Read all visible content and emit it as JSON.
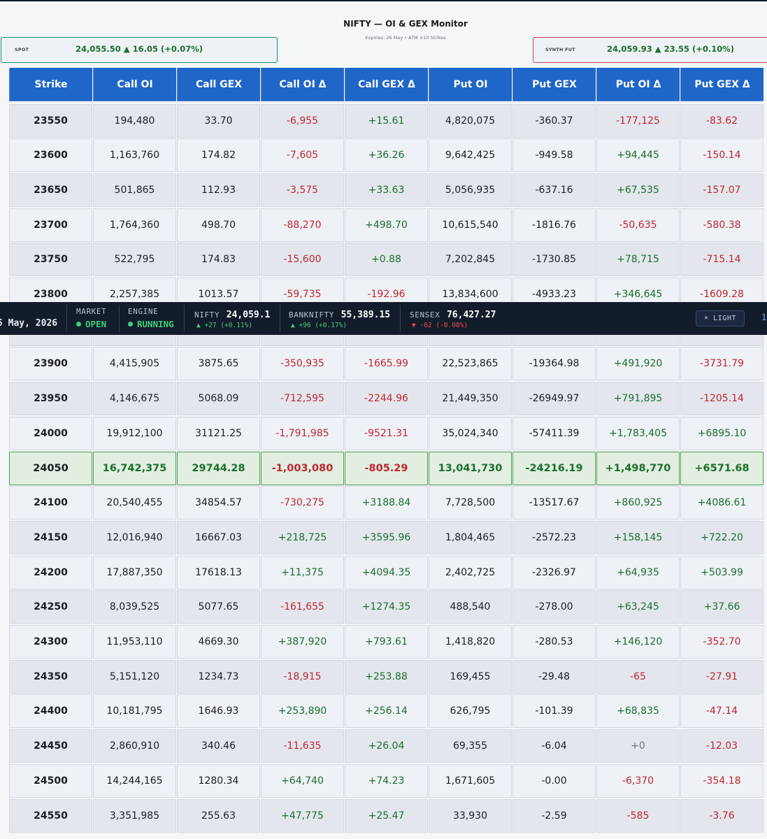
{
  "header": {
    "title": "NIFTY  —  OI & GEX Monitor",
    "subtitle": "Expiries: 26 May  •  ATM ±10 Strikes",
    "spot": {
      "label": "SPOT",
      "value": "24,055.50  ▲ 16.05 (+0.07%)"
    },
    "synth_fut": {
      "label": "SYNTH FUT",
      "value": "24,059.93  ▲ 23.55 (+0.10%)"
    }
  },
  "table": {
    "headers": [
      "Strike",
      "Call OI",
      "Call GEX",
      "Call OI Δ",
      "Call GEX Δ",
      "Put OI",
      "Put GEX",
      "Put OI Δ",
      "Put GEX Δ"
    ],
    "rows": [
      {
        "strike": "23550",
        "call_oi": "194,480",
        "call_gex": "33.70",
        "call_oi_d": "-6,955",
        "call_gex_d": "+15.61",
        "put_oi": "4,820,075",
        "put_gex": "-360.37",
        "put_oi_d": "-177,125",
        "put_gex_d": "-83.62"
      },
      {
        "strike": "23600",
        "call_oi": "1,163,760",
        "call_gex": "174.82",
        "call_oi_d": "-7,605",
        "call_gex_d": "+36.26",
        "put_oi": "9,642,425",
        "put_gex": "-949.58",
        "put_oi_d": "+94,445",
        "put_gex_d": "-150.14"
      },
      {
        "strike": "23650",
        "call_oi": "501,865",
        "call_gex": "112.93",
        "call_oi_d": "-3,575",
        "call_gex_d": "+33.63",
        "put_oi": "5,056,935",
        "put_gex": "-637.16",
        "put_oi_d": "+67,535",
        "put_gex_d": "-157.07"
      },
      {
        "strike": "23700",
        "call_oi": "1,764,360",
        "call_gex": "498.70",
        "call_oi_d": "-88,270",
        "call_gex_d": "+498.70",
        "put_oi": "10,615,540",
        "put_gex": "-1816.76",
        "put_oi_d": "-50,635",
        "put_gex_d": "-580.38"
      },
      {
        "strike": "23750",
        "call_oi": "522,795",
        "call_gex": "174.83",
        "call_oi_d": "-15,600",
        "call_gex_d": "+0.88",
        "put_oi": "7,202,845",
        "put_gex": "-1730.85",
        "put_oi_d": "+78,715",
        "put_gex_d": "-715.14"
      },
      {
        "strike": "23800",
        "call_oi": "2,257,385",
        "call_gex": "1013.57",
        "call_oi_d": "-59,735",
        "call_gex_d": "-192.96",
        "put_oi": "13,834,600",
        "put_gex": "-4933.23",
        "put_oi_d": "+346,645",
        "put_gex_d": "-1609.28"
      },
      {
        "strike": "",
        "call_oi": "",
        "call_gex": "",
        "call_oi_d": "",
        "call_gex_d": "",
        "put_oi": "",
        "put_gex": "",
        "put_oi_d": "",
        "put_gex_d": ""
      },
      {
        "strike": "23900",
        "call_oi": "4,415,905",
        "call_gex": "3875.65",
        "call_oi_d": "-350,935",
        "call_gex_d": "-1665.99",
        "put_oi": "22,523,865",
        "put_gex": "-19364.98",
        "put_oi_d": "+491,920",
        "put_gex_d": "-3731.79"
      },
      {
        "strike": "23950",
        "call_oi": "4,146,675",
        "call_gex": "5068.09",
        "call_oi_d": "-712,595",
        "call_gex_d": "-2244.96",
        "put_oi": "21,449,350",
        "put_gex": "-26949.97",
        "put_oi_d": "+791,895",
        "put_gex_d": "-1205.14"
      },
      {
        "strike": "24000",
        "call_oi": "19,912,100",
        "call_gex": "31121.25",
        "call_oi_d": "-1,791,985",
        "call_gex_d": "-9521.31",
        "put_oi": "35,024,340",
        "put_gex": "-57411.39",
        "put_oi_d": "+1,783,405",
        "put_gex_d": "+6895.10"
      },
      {
        "strike": "24050",
        "call_oi": "16,742,375",
        "call_gex": "29744.28",
        "call_oi_d": "-1,003,080",
        "call_gex_d": "-805.29",
        "put_oi": "13,041,730",
        "put_gex": "-24216.19",
        "put_oi_d": "+1,498,770",
        "put_gex_d": "+6571.68",
        "atm": true
      },
      {
        "strike": "24100",
        "call_oi": "20,540,455",
        "call_gex": "34854.57",
        "call_oi_d": "-730,275",
        "call_gex_d": "+3188.84",
        "put_oi": "7,728,500",
        "put_gex": "-13517.67",
        "put_oi_d": "+860,925",
        "put_gex_d": "+4086.61"
      },
      {
        "strike": "24150",
        "call_oi": "12,016,940",
        "call_gex": "16667.03",
        "call_oi_d": "+218,725",
        "call_gex_d": "+3595.96",
        "put_oi": "1,804,465",
        "put_gex": "-2572.23",
        "put_oi_d": "+158,145",
        "put_gex_d": "+722.20"
      },
      {
        "strike": "24200",
        "call_oi": "17,887,350",
        "call_gex": "17618.13",
        "call_oi_d": "+11,375",
        "call_gex_d": "+4094.35",
        "put_oi": "2,402,725",
        "put_gex": "-2326.97",
        "put_oi_d": "+64,935",
        "put_gex_d": "+503.99"
      },
      {
        "strike": "24250",
        "call_oi": "8,039,525",
        "call_gex": "5077.65",
        "call_oi_d": "-161,655",
        "call_gex_d": "+1274.35",
        "put_oi": "488,540",
        "put_gex": "-278.00",
        "put_oi_d": "+63,245",
        "put_gex_d": "+37.66"
      },
      {
        "strike": "24300",
        "call_oi": "11,953,110",
        "call_gex": "4669.30",
        "call_oi_d": "+387,920",
        "call_gex_d": "+793.61",
        "put_oi": "1,418,820",
        "put_gex": "-280.53",
        "put_oi_d": "+146,120",
        "put_gex_d": "-352.70"
      },
      {
        "strike": "24350",
        "call_oi": "5,151,120",
        "call_gex": "1234.73",
        "call_oi_d": "-18,915",
        "call_gex_d": "+253.88",
        "put_oi": "169,455",
        "put_gex": "-29.48",
        "put_oi_d": "-65",
        "put_gex_d": "-27.91"
      },
      {
        "strike": "24400",
        "call_oi": "10,181,795",
        "call_gex": "1646.93",
        "call_oi_d": "+253,890",
        "call_gex_d": "+256.14",
        "put_oi": "626,795",
        "put_gex": "-101.39",
        "put_oi_d": "+68,835",
        "put_gex_d": "-47.14"
      },
      {
        "strike": "24450",
        "call_oi": "2,860,910",
        "call_gex": "340.46",
        "call_oi_d": "-11,635",
        "call_gex_d": "+26.04",
        "put_oi": "69,355",
        "put_gex": "-6.04",
        "put_oi_d": "+0",
        "put_gex_d": "-12.03"
      },
      {
        "strike": "24500",
        "call_oi": "14,244,165",
        "call_gex": "1280.34",
        "call_oi_d": "+64,740",
        "call_gex_d": "+74.23",
        "put_oi": "1,671,605",
        "put_gex": "-0.00",
        "put_oi_d": "-6,370",
        "put_gex_d": "-354.18"
      },
      {
        "strike": "24550",
        "call_oi": "3,351,985",
        "call_gex": "255.63",
        "call_oi_d": "+47,775",
        "call_gex_d": "+25.47",
        "put_oi": "33,930",
        "put_gex": "-2.59",
        "put_oi_d": "-585",
        "put_gex_d": "-3.76"
      }
    ]
  },
  "status_bar": {
    "date": "5 May, 2026",
    "market": {
      "label": "MARKET",
      "value": "OPEN"
    },
    "engine": {
      "label": "ENGINE",
      "value": "RUNNING"
    },
    "nifty": {
      "label": "NIFTY",
      "value": "24,059.1",
      "change": "▲ +27 (+0.11%)"
    },
    "banknifty": {
      "label": "BANKNIFTY",
      "value": "55,389.15",
      "change": "▲ +96 (+0.17%)"
    },
    "sensex": {
      "label": "SENSEX",
      "value": "76,427.27",
      "change": "▼ -62 (-0.08%)"
    },
    "theme_button": "☀ LIGHT",
    "edge_text": "1"
  },
  "colors": {
    "header_blue": "#1f66c8",
    "positive": "#1b6e2c",
    "negative": "#c0262d",
    "atm_bg": "#e2efe0",
    "status_bg": "#131c2b"
  }
}
